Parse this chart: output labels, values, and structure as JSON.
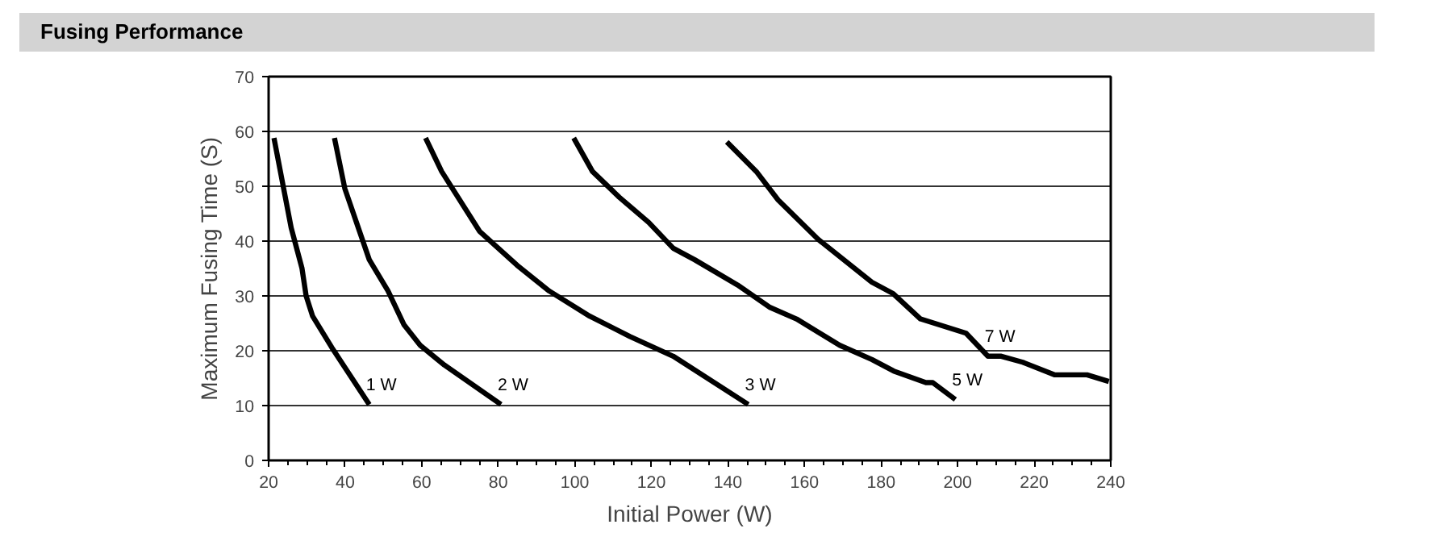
{
  "chart_data": {
    "type": "line",
    "title": "Fusing Performance",
    "xlabel": "Initial Power (W)",
    "ylabel": "Maximum Fusing Time (S)",
    "xlim": [
      20,
      240
    ],
    "xticks": [
      20,
      40,
      60,
      80,
      100,
      120,
      140,
      160,
      180,
      200,
      220,
      240
    ],
    "ylim": [
      0,
      70
    ],
    "yticks": [
      0,
      10,
      20,
      30,
      40,
      50,
      60,
      70
    ],
    "grid": "y",
    "line_style": "solid",
    "series": [
      {
        "name": "1 W",
        "color": "#000000",
        "x": [
          21.4,
          25.9,
          28.7,
          29.8,
          31.5,
          36.5,
          46.3
        ],
        "values": [
          58.8,
          42.4,
          35.1,
          30,
          26.3,
          20.6,
          10.2
        ]
      },
      {
        "name": "2 W",
        "color": "#000000",
        "x": [
          37.2,
          39.9,
          46.3,
          51.2,
          55.4,
          59.6,
          65.9,
          80.7
        ],
        "values": [
          58.8,
          49.6,
          36.6,
          30.9,
          24.7,
          21.0,
          17.4,
          10.2
        ]
      },
      {
        "name": "3 W",
        "color": "#000000",
        "x": [
          61,
          65.2,
          75.1,
          84.9,
          93.3,
          103.9,
          114.4,
          125.7,
          145.3
        ],
        "values": [
          58.8,
          52.7,
          41.8,
          35.6,
          30.9,
          26.3,
          22.6,
          19,
          10.2
        ]
      },
      {
        "name": "5 W",
        "color": "#000000",
        "x": [
          99.7,
          104.6,
          111.6,
          119.3,
          125.7,
          131.3,
          142.5,
          151,
          157.9,
          169.2,
          177.6,
          183.3,
          191.7,
          193.5,
          199.4
        ],
        "values": [
          58.8,
          52.7,
          48,
          43.4,
          38.7,
          36.6,
          32,
          27.9,
          25.8,
          21.0,
          18.4,
          16.3,
          14.2,
          14.2,
          11.1
        ]
      },
      {
        "name": "7 W",
        "color": "#000000",
        "x": [
          139.7,
          147.4,
          153.1,
          163.6,
          177.6,
          183.2,
          190.3,
          202.2,
          207.9,
          211.4,
          217,
          225.4,
          233.8,
          239.5
        ],
        "values": [
          58.1,
          52.7,
          47.5,
          40.3,
          32.5,
          30.4,
          25.8,
          23.2,
          19,
          19,
          17.9,
          15.6,
          15.6,
          14.4
        ]
      }
    ]
  }
}
